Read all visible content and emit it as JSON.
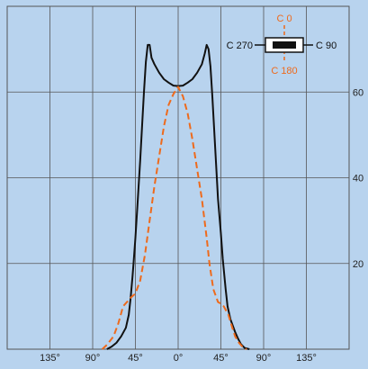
{
  "chart_data": {
    "type": "line",
    "x_ticks": [
      {
        "value": -135,
        "label": "135°"
      },
      {
        "value": -90,
        "label": "90°"
      },
      {
        "value": -45,
        "label": "45°"
      },
      {
        "value": 0,
        "label": "0°"
      },
      {
        "value": 45,
        "label": "45°"
      },
      {
        "value": 90,
        "label": "90°"
      },
      {
        "value": 135,
        "label": "135°"
      }
    ],
    "y_ticks": [
      {
        "value": 20,
        "label": "20"
      },
      {
        "value": 40,
        "label": "40"
      },
      {
        "value": 60,
        "label": "60"
      }
    ],
    "xlim": [
      -180,
      180
    ],
    "ylim": [
      0,
      80
    ],
    "grid": true,
    "series": [
      {
        "name": "C 90",
        "color": "#111111",
        "style": "solid",
        "points": [
          [
            -75,
            0
          ],
          [
            -70,
            0.6
          ],
          [
            -65,
            1.5
          ],
          [
            -60,
            3
          ],
          [
            -55,
            5
          ],
          [
            -52,
            8
          ],
          [
            -50,
            12
          ],
          [
            -48,
            17
          ],
          [
            -47,
            20
          ],
          [
            -45,
            26
          ],
          [
            -43,
            33
          ],
          [
            -40,
            44
          ],
          [
            -38,
            52
          ],
          [
            -36,
            60
          ],
          [
            -34,
            67
          ],
          [
            -32,
            71
          ],
          [
            -30,
            71
          ],
          [
            -28,
            68
          ],
          [
            -25,
            66.5
          ],
          [
            -20,
            64.5
          ],
          [
            -15,
            63
          ],
          [
            -10,
            62.2
          ],
          [
            -5,
            61.5
          ],
          [
            0,
            61.4
          ],
          [
            5,
            61.5
          ],
          [
            10,
            62.2
          ],
          [
            15,
            63
          ],
          [
            20,
            64.5
          ],
          [
            25,
            66.5
          ],
          [
            28,
            69
          ],
          [
            30,
            71
          ],
          [
            32,
            70
          ],
          [
            34,
            66
          ],
          [
            36,
            59
          ],
          [
            38,
            51
          ],
          [
            40,
            43
          ],
          [
            42,
            35
          ],
          [
            45,
            27
          ],
          [
            47,
            21
          ],
          [
            50,
            14
          ],
          [
            52,
            10
          ],
          [
            55,
            7
          ],
          [
            60,
            4
          ],
          [
            63,
            2.5
          ],
          [
            66,
            1.2
          ],
          [
            70,
            0.3
          ],
          [
            75,
            0
          ]
        ]
      },
      {
        "name": "C 0",
        "color": "#ee6a1c",
        "style": "dashed",
        "points": [
          [
            -80,
            0
          ],
          [
            -75,
            1
          ],
          [
            -68,
            3
          ],
          [
            -63,
            6
          ],
          [
            -58,
            10
          ],
          [
            -50,
            12
          ],
          [
            -45,
            13
          ],
          [
            -40,
            16
          ],
          [
            -35,
            22
          ],
          [
            -30,
            30
          ],
          [
            -25,
            38
          ],
          [
            -20,
            45
          ],
          [
            -15,
            52
          ],
          [
            -10,
            57
          ],
          [
            -5,
            59.5
          ],
          [
            0,
            61.2
          ],
          [
            5,
            59
          ],
          [
            10,
            55
          ],
          [
            15,
            49
          ],
          [
            20,
            42
          ],
          [
            25,
            35
          ],
          [
            30,
            26
          ],
          [
            33,
            20
          ],
          [
            37,
            14
          ],
          [
            42,
            11
          ],
          [
            46,
            10.5
          ],
          [
            48,
            10
          ],
          [
            53,
            8
          ],
          [
            57,
            5
          ],
          [
            60,
            3
          ],
          [
            64,
            1.5
          ],
          [
            68,
            0.5
          ],
          [
            72,
            0
          ]
        ]
      }
    ]
  },
  "legend": {
    "label_top": "C 0",
    "label_left": "C 270",
    "label_right": "C 90",
    "label_bottom": "C 180",
    "color_top_bottom": "#ee6a1c",
    "color_left_right": "#111111"
  },
  "colors": {
    "background": "#b8d3ee",
    "grid": "#555555"
  }
}
